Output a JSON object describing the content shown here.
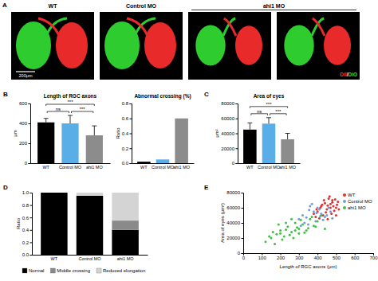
{
  "chart_data": [
    {
      "type": "image",
      "label": "A",
      "groups": [
        "WT",
        "Control MO",
        "ahi1 MO"
      ],
      "group_spans": [
        1,
        1,
        2
      ],
      "scale_bar": "200μm",
      "stain_labels": [
        "DiI",
        "/",
        "DiO"
      ],
      "colors": [
        "#ff3030",
        "#ffffff",
        "#30e030"
      ]
    },
    {
      "type": "bar",
      "label": "B",
      "title": "Length of RGC axons",
      "y_label": "μm",
      "categories": [
        "WT",
        "Control MO",
        "ahi1 MO"
      ],
      "values": [
        410,
        400,
        280
      ],
      "errors": [
        40,
        80,
        95
      ],
      "colors": [
        "#000000",
        "#5aaee8",
        "#8c8c8c"
      ],
      "ylim": [
        0,
        600
      ],
      "yticks": [
        0,
        200,
        400,
        600
      ],
      "significance": [
        {
          "label": "ns",
          "pair": [
            0,
            1
          ]
        },
        {
          "label": "***",
          "pair": [
            1,
            2
          ]
        },
        {
          "label": "***",
          "pair": [
            0,
            2
          ]
        }
      ]
    },
    {
      "type": "bar",
      "title": "Abnormal crossing (%)",
      "y_label": "Ratio",
      "categories": [
        "WT",
        "Control MO",
        "ahi1 MO"
      ],
      "values": [
        0.02,
        0.05,
        0.6
      ],
      "colors": [
        "#000000",
        "#5aaee8",
        "#8c8c8c"
      ],
      "ylim": [
        0,
        0.8
      ],
      "yticks": [
        {
          "value": 0,
          "label": "0.0"
        },
        0.2,
        0.4,
        0.6,
        0.8
      ]
    },
    {
      "type": "bar",
      "label": "C",
      "title": "Area of eyes",
      "y_label": "μm²",
      "categories": [
        "WT",
        "Control MO",
        "ahi1 MO"
      ],
      "values": [
        45000,
        53000,
        32000
      ],
      "errors": [
        9000,
        8000,
        8000
      ],
      "colors": [
        "#000000",
        "#5aaee8",
        "#8c8c8c"
      ],
      "ylim": [
        0,
        80000
      ],
      "yticks": [
        0,
        20000,
        40000,
        60000,
        80000
      ],
      "significance": [
        {
          "label": "ns",
          "pair": [
            0,
            1
          ]
        },
        {
          "label": "***",
          "pair": [
            1,
            2
          ]
        },
        {
          "label": "***",
          "pair": [
            0,
            2
          ]
        }
      ]
    },
    {
      "type": "bar",
      "stacked": true,
      "label": "D",
      "y_label": "Ratio",
      "categories": [
        "WT",
        "Control MO",
        "ahi1 MO"
      ],
      "series": [
        {
          "name": "Normal",
          "color": "#000000",
          "values": [
            1.0,
            0.95,
            0.4
          ]
        },
        {
          "name": "Middle crossing",
          "color": "#8a8a8a",
          "values": [
            0,
            0,
            0.15
          ]
        },
        {
          "name": "Reduced elongation",
          "color": "#d4d4d4",
          "values": [
            0,
            0.05,
            0.45
          ]
        }
      ],
      "ylim": [
        0,
        1
      ],
      "yticks": [
        {
          "value": 0,
          "label": "0.0"
        },
        0.2,
        0.4,
        0.6,
        0.8,
        {
          "value": 1,
          "label": "1.0"
        }
      ],
      "legend": "bottom"
    },
    {
      "type": "scatter",
      "label": "E",
      "x_label": "Length of RGC axons (μm)",
      "y_label": "Area of eyes (μm²)",
      "xlim": [
        0,
        700
      ],
      "xticks": [
        0,
        100,
        200,
        300,
        400,
        500,
        600,
        700
      ],
      "ylim": [
        0,
        80000
      ],
      "yticks": [
        0,
        20000,
        40000,
        60000,
        80000
      ],
      "legend": "top-right",
      "series": [
        {
          "name": "WT",
          "color": "#e03030",
          "x": [
            400,
            420,
            450,
            470,
            480,
            500,
            510,
            430,
            460,
            390,
            440,
            490,
            415,
            475,
            505,
            455,
            435,
            485,
            395,
            465,
            445,
            500,
            425,
            480,
            515,
            410,
            470,
            455,
            380,
            495
          ],
          "values": [
            55000,
            62000,
            58000,
            65000,
            70000,
            60000,
            68000,
            50000,
            72000,
            48000,
            66000,
            56000,
            60000,
            52000,
            64000,
            45000,
            70000,
            62000,
            58000,
            75000,
            54000,
            50000,
            64000,
            67000,
            58000,
            46000,
            60000,
            63000,
            52000,
            71000
          ]
        },
        {
          "name": "Control MO",
          "color": "#6aa0d8",
          "x": [
            300,
            320,
            350,
            380,
            400,
            420,
            440,
            360,
            390,
            410,
            330,
            370,
            450,
            470,
            340,
            430,
            310,
            395,
            460,
            480,
            355,
            415
          ],
          "values": [
            45000,
            50000,
            38000,
            55000,
            60000,
            52000,
            48000,
            62000,
            42000,
            58000,
            40000,
            65000,
            50000,
            55000,
            47000,
            44000,
            36000,
            53000,
            60000,
            46000,
            57000,
            49000
          ]
        },
        {
          "name": "ahi1 MO",
          "color": "#40c040",
          "x": [
            120,
            150,
            180,
            200,
            220,
            240,
            260,
            280,
            300,
            320,
            340,
            360,
            380,
            400,
            420,
            170,
            210,
            250,
            290,
            330,
            370,
            190,
            230,
            270,
            310,
            350,
            160,
            140,
            260,
            300,
            230,
            200,
            280,
            390,
            440
          ],
          "values": [
            15000,
            20000,
            25000,
            30000,
            22000,
            35000,
            28000,
            40000,
            32000,
            38000,
            30000,
            45000,
            36000,
            42000,
            50000,
            12000,
            18000,
            24000,
            34000,
            27000,
            48000,
            38000,
            31000,
            20000,
            44000,
            33000,
            28000,
            22000,
            45000,
            26000,
            40000,
            26000,
            30000,
            35000,
            32000
          ]
        }
      ]
    }
  ]
}
